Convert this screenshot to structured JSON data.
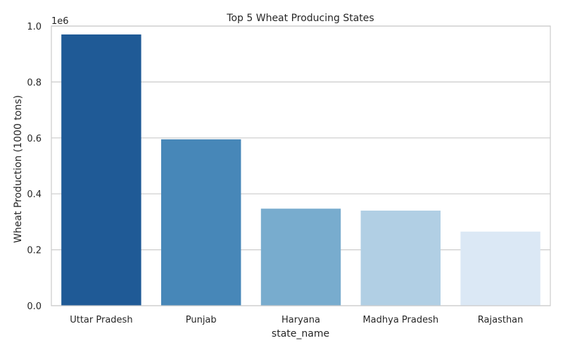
{
  "chart_data": {
    "type": "bar",
    "title": "Top 5 Wheat Producing States",
    "xlabel": "state_name",
    "ylabel": "Wheat Production (1000 tons)",
    "y_offset_label": "1e6",
    "categories": [
      "Uttar Pradesh",
      "Punjab",
      "Haryana",
      "Madhya Pradesh",
      "Rajasthan"
    ],
    "values": [
      970000,
      595000,
      347000,
      340000,
      265000
    ],
    "ylim": [
      0,
      1000000
    ],
    "yticks": [
      0,
      200000,
      400000,
      600000,
      800000,
      1000000
    ],
    "ytick_labels": [
      "0.0",
      "0.2",
      "0.4",
      "0.6",
      "0.8",
      "1.0"
    ],
    "grid": true,
    "colors": [
      "#1f5a96",
      "#4787b8",
      "#78acce",
      "#b1cfe4",
      "#dbe8f5"
    ]
  }
}
